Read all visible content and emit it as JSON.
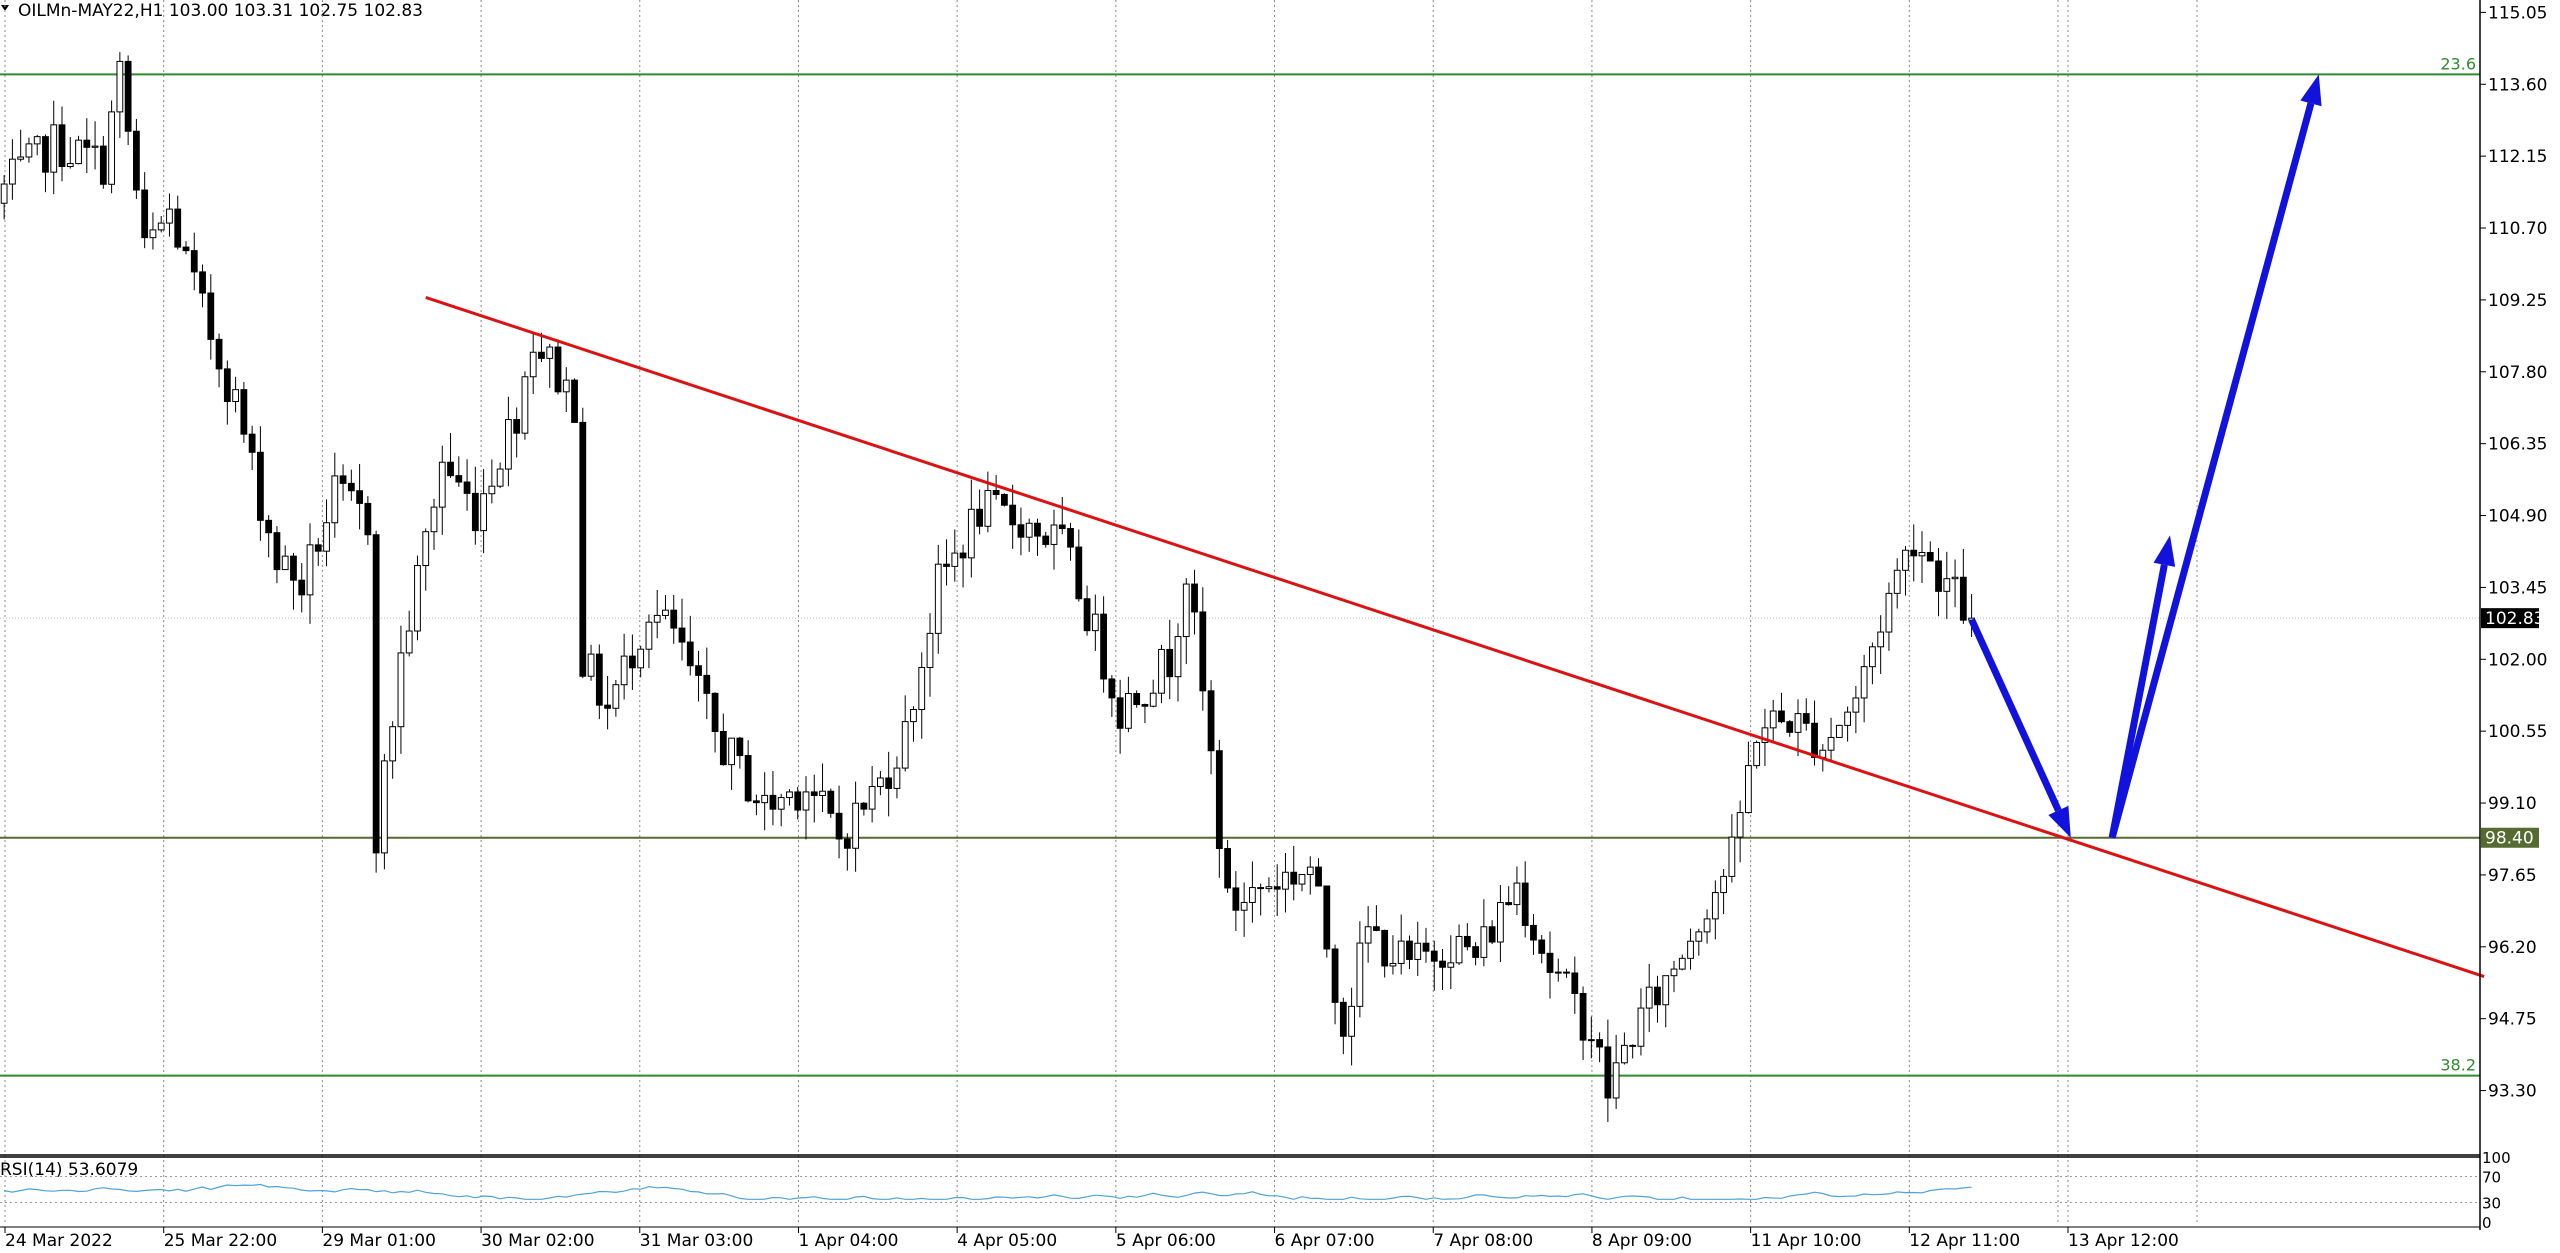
{
  "chart_data": [
    {
      "type": "candlestick",
      "symbol_header": "OILMn-MAY22,H1  103.00 103.31 102.75 102.83",
      "ylim": [
        92.0,
        115.3
      ],
      "y_ticks": [
        "115.05",
        "113.60",
        "112.15",
        "110.70",
        "109.25",
        "107.80",
        "106.35",
        "104.90",
        "103.45",
        "102.00",
        "100.55",
        "99.10",
        "97.65",
        "96.20",
        "94.75",
        "93.30"
      ],
      "x_ticks": [
        "24 Mar 2022",
        "25 Mar 22:00",
        "29 Mar 01:00",
        "30 Mar 02:00",
        "31 Mar 03:00",
        "1 Apr 04:00",
        "4 Apr 05:00",
        "5 Apr 06:00",
        "6 Apr 07:00",
        "7 Apr 08:00",
        "8 Apr 09:00",
        "11 Apr 10:00",
        "12 Apr 11:00",
        "13 Apr 12:00"
      ],
      "bar_count": 300,
      "last_bar_index": 238,
      "current_price": 102.83,
      "current_price_label": "102.83",
      "close_path": [
        [
          0,
          111.5
        ],
        [
          6,
          112.4
        ],
        [
          12,
          112.0
        ],
        [
          14,
          113.8
        ],
        [
          17,
          110.2
        ],
        [
          20,
          111.0
        ],
        [
          24,
          109.0
        ],
        [
          28,
          107.2
        ],
        [
          31,
          105.2
        ],
        [
          33,
          104.0
        ],
        [
          36,
          103.5
        ],
        [
          40,
          105.3
        ],
        [
          44,
          104.8
        ],
        [
          45,
          98.5
        ],
        [
          48,
          102.0
        ],
        [
          53,
          106.0
        ],
        [
          57,
          105.0
        ],
        [
          62,
          107.0
        ],
        [
          64,
          108.5
        ],
        [
          69,
          107.2
        ],
        [
          70,
          102.0
        ],
        [
          73,
          101.0
        ],
        [
          78,
          103.0
        ],
        [
          81,
          102.5
        ],
        [
          86,
          100.5
        ],
        [
          92,
          99.0
        ],
        [
          97,
          99.5
        ],
        [
          101,
          98.4
        ],
        [
          106,
          99.5
        ],
        [
          109,
          100.5
        ],
        [
          113,
          103.5
        ],
        [
          118,
          105.0
        ],
        [
          123,
          104.8
        ],
        [
          128,
          104.3
        ],
        [
          132,
          102.5
        ],
        [
          135,
          101.0
        ],
        [
          141,
          102.0
        ],
        [
          143,
          103.8
        ],
        [
          146,
          100.0
        ],
        [
          148,
          97.0
        ],
        [
          153,
          97.5
        ],
        [
          158,
          97.8
        ],
        [
          162,
          94.7
        ],
        [
          165,
          96.5
        ],
        [
          170,
          95.8
        ],
        [
          175,
          96.3
        ],
        [
          178,
          96.0
        ],
        [
          183,
          97.5
        ],
        [
          187,
          95.8
        ],
        [
          192,
          94.5
        ],
        [
          194,
          93.3
        ],
        [
          197,
          94.5
        ],
        [
          201,
          95.5
        ],
        [
          205,
          96.8
        ],
        [
          209,
          98.0
        ],
        [
          212,
          100.6
        ],
        [
          216,
          100.8
        ],
        [
          220,
          100.3
        ],
        [
          224,
          101.2
        ],
        [
          228,
          103.3
        ],
        [
          231,
          104.5
        ],
        [
          235,
          103.5
        ],
        [
          238,
          102.83
        ]
      ],
      "rsi": {
        "label": "RSI(14) 53.6079",
        "period": 14,
        "value": 53.6079,
        "ylim": [
          0,
          100
        ],
        "levels": [
          30,
          70
        ],
        "level_labels": [
          "100",
          "70",
          "30",
          "0"
        ]
      },
      "horizontal_levels": [
        {
          "price": 113.8,
          "label": "23.6",
          "color": "#2e8b2e"
        },
        {
          "price": 98.4,
          "label": "98.40",
          "color": "#556b2f"
        },
        {
          "price": 93.6,
          "label": "38.2",
          "color": "#2e8b2e"
        }
      ],
      "trendline": {
        "color": "#dd1111",
        "points": [
          [
            51,
            109.3
          ],
          [
            300,
            95.6
          ]
        ]
      },
      "forecast_arrows": [
        {
          "color": "#1212dd",
          "points": [
            [
              238,
              102.8
            ],
            [
              250,
              98.4
            ]
          ]
        },
        {
          "color": "#1212dd",
          "points": [
            [
              255,
              98.4
            ],
            [
              262,
              104.5
            ]
          ]
        },
        {
          "color": "#1212dd",
          "points": [
            [
              255,
              98.4
            ],
            [
              280,
              113.8
            ]
          ]
        }
      ],
      "colors": {
        "candle": "#000000",
        "grid": "#888888",
        "rsi_line": "#4fa3d8",
        "price_tag_bg": "#000000",
        "level_tag_bg": "#556b2f"
      }
    }
  ]
}
